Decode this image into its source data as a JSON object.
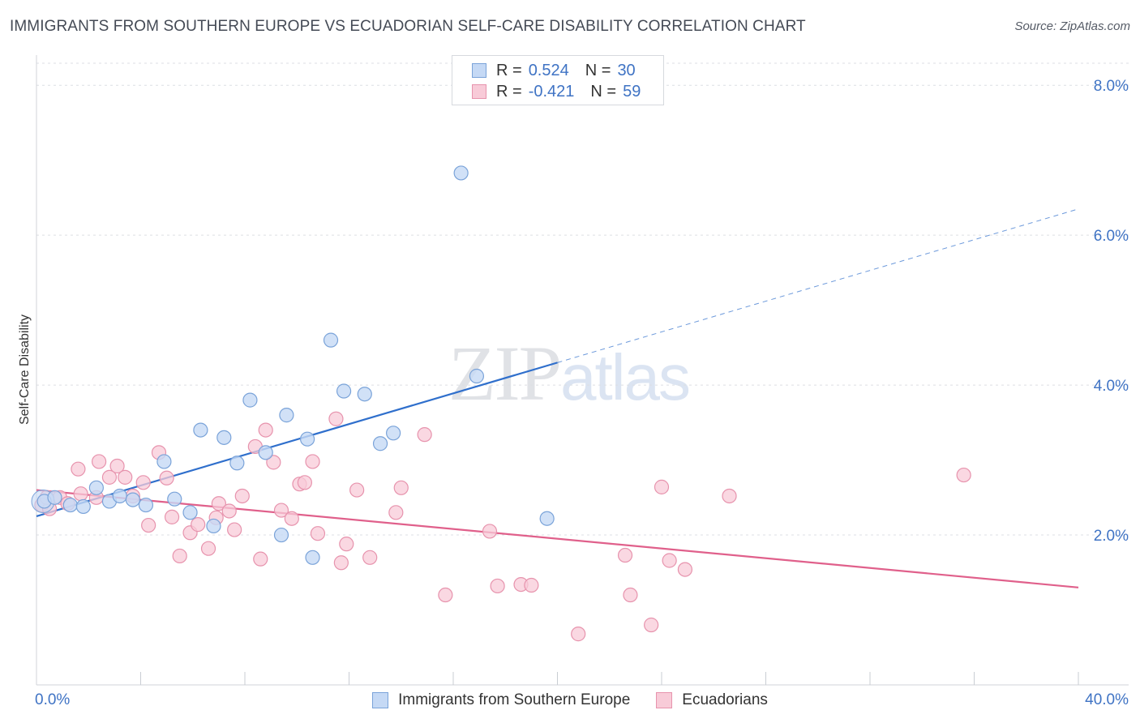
{
  "title": "IMMIGRANTS FROM SOUTHERN EUROPE VS ECUADORIAN SELF-CARE DISABILITY CORRELATION CHART",
  "source": "Source: ZipAtlas.com",
  "watermark": {
    "zip": "ZIP",
    "atlas": "atlas"
  },
  "colors": {
    "blue_fill": "#c5d9f5",
    "blue_stroke": "#7aa3d9",
    "blue_line": "#2f6fcc",
    "pink_fill": "#f8cbd8",
    "pink_stroke": "#e793ad",
    "pink_line": "#e0608b",
    "tick_text": "#3f73c4",
    "grid": "#dcdfe4"
  },
  "legend_top": {
    "rows": [
      {
        "r_label": "R =",
        "r_value": "0.524",
        "n_label": "N =",
        "n_value": "30",
        "color": "#c5d9f5",
        "border": "#7aa3d9"
      },
      {
        "r_label": "R =",
        "r_value": "-0.421",
        "n_label": "N =",
        "n_value": "59",
        "color": "#f8cbd8",
        "border": "#e793ad"
      }
    ]
  },
  "legend_bottom": [
    {
      "label": "Immigrants from Southern Europe",
      "color": "#c5d9f5",
      "border": "#7aa3d9"
    },
    {
      "label": "Ecuadorians",
      "color": "#f8cbd8",
      "border": "#e793ad"
    }
  ],
  "chart_data": {
    "type": "scatter",
    "title": "IMMIGRANTS FROM SOUTHERN EUROPE VS ECUADORIAN SELF-CARE DISABILITY CORRELATION CHART",
    "xlabel": "",
    "ylabel": "Self-Care Disability",
    "xlim": [
      0,
      40
    ],
    "ylim": [
      0,
      8.5
    ],
    "x_tick_labels": [
      {
        "value": 0,
        "label": "0.0%"
      },
      {
        "value": 40,
        "label": "40.0%"
      }
    ],
    "y_tick_labels": [
      {
        "value": 2,
        "label": "2.0%"
      },
      {
        "value": 4,
        "label": "4.0%"
      },
      {
        "value": 6,
        "label": "6.0%"
      },
      {
        "value": 8,
        "label": "8.0%"
      }
    ],
    "x_minor_ticks": [
      4,
      8,
      12,
      16,
      20,
      24,
      28,
      32,
      36,
      40
    ],
    "grid": "horizontal dashed",
    "legend": "top-center and bottom",
    "series": [
      {
        "name": "Immigrants from Southern Europe",
        "color": "#c5d9f5",
        "points": [
          [
            0.3,
            2.45
          ],
          [
            0.7,
            2.5
          ],
          [
            1.3,
            2.4
          ],
          [
            1.8,
            2.38
          ],
          [
            2.3,
            2.63
          ],
          [
            2.8,
            2.45
          ],
          [
            3.2,
            2.52
          ],
          [
            3.7,
            2.47
          ],
          [
            4.2,
            2.4
          ],
          [
            4.9,
            2.98
          ],
          [
            5.3,
            2.48
          ],
          [
            5.9,
            2.3
          ],
          [
            6.3,
            3.4
          ],
          [
            6.8,
            2.12
          ],
          [
            7.2,
            3.3
          ],
          [
            7.7,
            2.96
          ],
          [
            8.2,
            3.8
          ],
          [
            8.8,
            3.1
          ],
          [
            9.4,
            2.0
          ],
          [
            9.6,
            3.6
          ],
          [
            10.4,
            3.28
          ],
          [
            10.6,
            1.7
          ],
          [
            11.3,
            4.6
          ],
          [
            11.8,
            3.92
          ],
          [
            12.6,
            3.88
          ],
          [
            13.2,
            3.22
          ],
          [
            13.7,
            3.36
          ],
          [
            16.9,
            4.12
          ],
          [
            16.3,
            6.83
          ],
          [
            19.6,
            2.22
          ]
        ],
        "trend": {
          "x": [
            0,
            20
          ],
          "y": [
            2.25,
            4.3
          ]
        },
        "trend_extension": {
          "x": [
            20,
            40
          ],
          "y": [
            4.3,
            6.35
          ],
          "style": "dashed"
        }
      },
      {
        "name": "Ecuadorians",
        "color": "#f8cbd8",
        "points": [
          [
            0.2,
            2.4
          ],
          [
            0.5,
            2.35
          ],
          [
            0.9,
            2.5
          ],
          [
            1.2,
            2.42
          ],
          [
            1.7,
            2.55
          ],
          [
            1.6,
            2.88
          ],
          [
            2.3,
            2.5
          ],
          [
            2.4,
            2.98
          ],
          [
            2.8,
            2.77
          ],
          [
            3.1,
            2.92
          ],
          [
            3.4,
            2.77
          ],
          [
            3.7,
            2.52
          ],
          [
            4.1,
            2.7
          ],
          [
            4.3,
            2.13
          ],
          [
            4.7,
            3.1
          ],
          [
            5.0,
            2.76
          ],
          [
            5.2,
            2.24
          ],
          [
            5.5,
            1.72
          ],
          [
            5.9,
            2.03
          ],
          [
            6.2,
            2.14
          ],
          [
            6.6,
            1.82
          ],
          [
            6.9,
            2.23
          ],
          [
            7.0,
            2.42
          ],
          [
            7.4,
            2.32
          ],
          [
            7.6,
            2.07
          ],
          [
            7.9,
            2.52
          ],
          [
            8.4,
            3.18
          ],
          [
            8.6,
            1.68
          ],
          [
            8.8,
            3.4
          ],
          [
            9.1,
            2.97
          ],
          [
            9.4,
            2.33
          ],
          [
            9.8,
            2.22
          ],
          [
            10.1,
            2.68
          ],
          [
            10.3,
            2.7
          ],
          [
            10.6,
            2.98
          ],
          [
            10.8,
            2.02
          ],
          [
            11.5,
            3.55
          ],
          [
            11.7,
            1.63
          ],
          [
            11.9,
            1.88
          ],
          [
            12.3,
            2.6
          ],
          [
            12.8,
            1.7
          ],
          [
            13.8,
            2.3
          ],
          [
            14.0,
            2.63
          ],
          [
            14.9,
            3.34
          ],
          [
            15.7,
            1.2
          ],
          [
            17.4,
            2.05
          ],
          [
            17.7,
            1.32
          ],
          [
            18.6,
            1.34
          ],
          [
            19.0,
            1.33
          ],
          [
            20.8,
            0.68
          ],
          [
            22.6,
            1.73
          ],
          [
            22.8,
            1.2
          ],
          [
            23.6,
            0.8
          ],
          [
            24.0,
            2.64
          ],
          [
            24.3,
            1.66
          ],
          [
            24.9,
            1.54
          ],
          [
            26.6,
            2.52
          ],
          [
            35.6,
            2.8
          ],
          [
            0.4,
            2.5
          ]
        ],
        "trend": {
          "x": [
            0,
            40
          ],
          "y": [
            2.6,
            1.3
          ]
        }
      }
    ]
  }
}
